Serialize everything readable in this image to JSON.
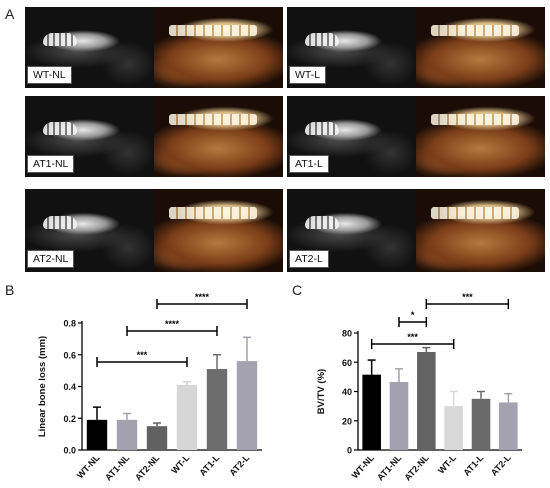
{
  "panel_labels": {
    "a": "A",
    "b": "B",
    "c": "C"
  },
  "images": [
    {
      "label": "WT-NL"
    },
    {
      "label": "WT-L"
    },
    {
      "label": "AT1-NL"
    },
    {
      "label": "AT1-L"
    },
    {
      "label": "AT2-NL"
    },
    {
      "label": "AT2-L"
    }
  ],
  "chart_data": [
    {
      "type": "bar",
      "categories": [
        "WT-NL",
        "AT1-NL",
        "AT2-NL",
        "WT-L",
        "AT1-L",
        "AT2-L"
      ],
      "values": [
        0.19,
        0.19,
        0.15,
        0.41,
        0.51,
        0.56
      ],
      "errors": [
        0.08,
        0.04,
        0.02,
        0.02,
        0.09,
        0.15
      ],
      "colors": [
        "#000000",
        "#a3a0b0",
        "#616161",
        "#d6d6d6",
        "#6d6d6d",
        "#a4a1b0"
      ],
      "ylabel": "Linear bone loss (mm)",
      "ylim": [
        0,
        0.8
      ],
      "yticks": [
        "0.0",
        "0.2",
        "0.4",
        "0.6",
        "0.8"
      ],
      "annotations": [
        {
          "from": 0,
          "to": 3,
          "text": "***"
        },
        {
          "from": 1,
          "to": 4,
          "text": "****"
        },
        {
          "from": 2,
          "to": 5,
          "text": "****"
        }
      ]
    },
    {
      "type": "bar",
      "categories": [
        "WT-NL",
        "AT1-NL",
        "AT2-NL",
        "WT-L",
        "AT1-L",
        "AT2-L"
      ],
      "values": [
        51.5,
        46.5,
        67,
        30,
        35,
        32.5
      ],
      "errors": [
        10,
        9,
        3,
        10,
        5,
        6
      ],
      "colors": [
        "#000000",
        "#a3a0b0",
        "#636363",
        "#d8d8d8",
        "#6a6a6a",
        "#a4a1b0"
      ],
      "ylabel": "BV/TV (%)",
      "ylim": [
        0,
        80
      ],
      "yticks": [
        "0",
        "20",
        "40",
        "60",
        "80"
      ],
      "annotations": [
        {
          "from": 1,
          "to": 2,
          "text": "*"
        },
        {
          "from": 0,
          "to": 3,
          "text": "***"
        },
        {
          "from": 2,
          "to": 5,
          "text": "***"
        }
      ]
    }
  ]
}
